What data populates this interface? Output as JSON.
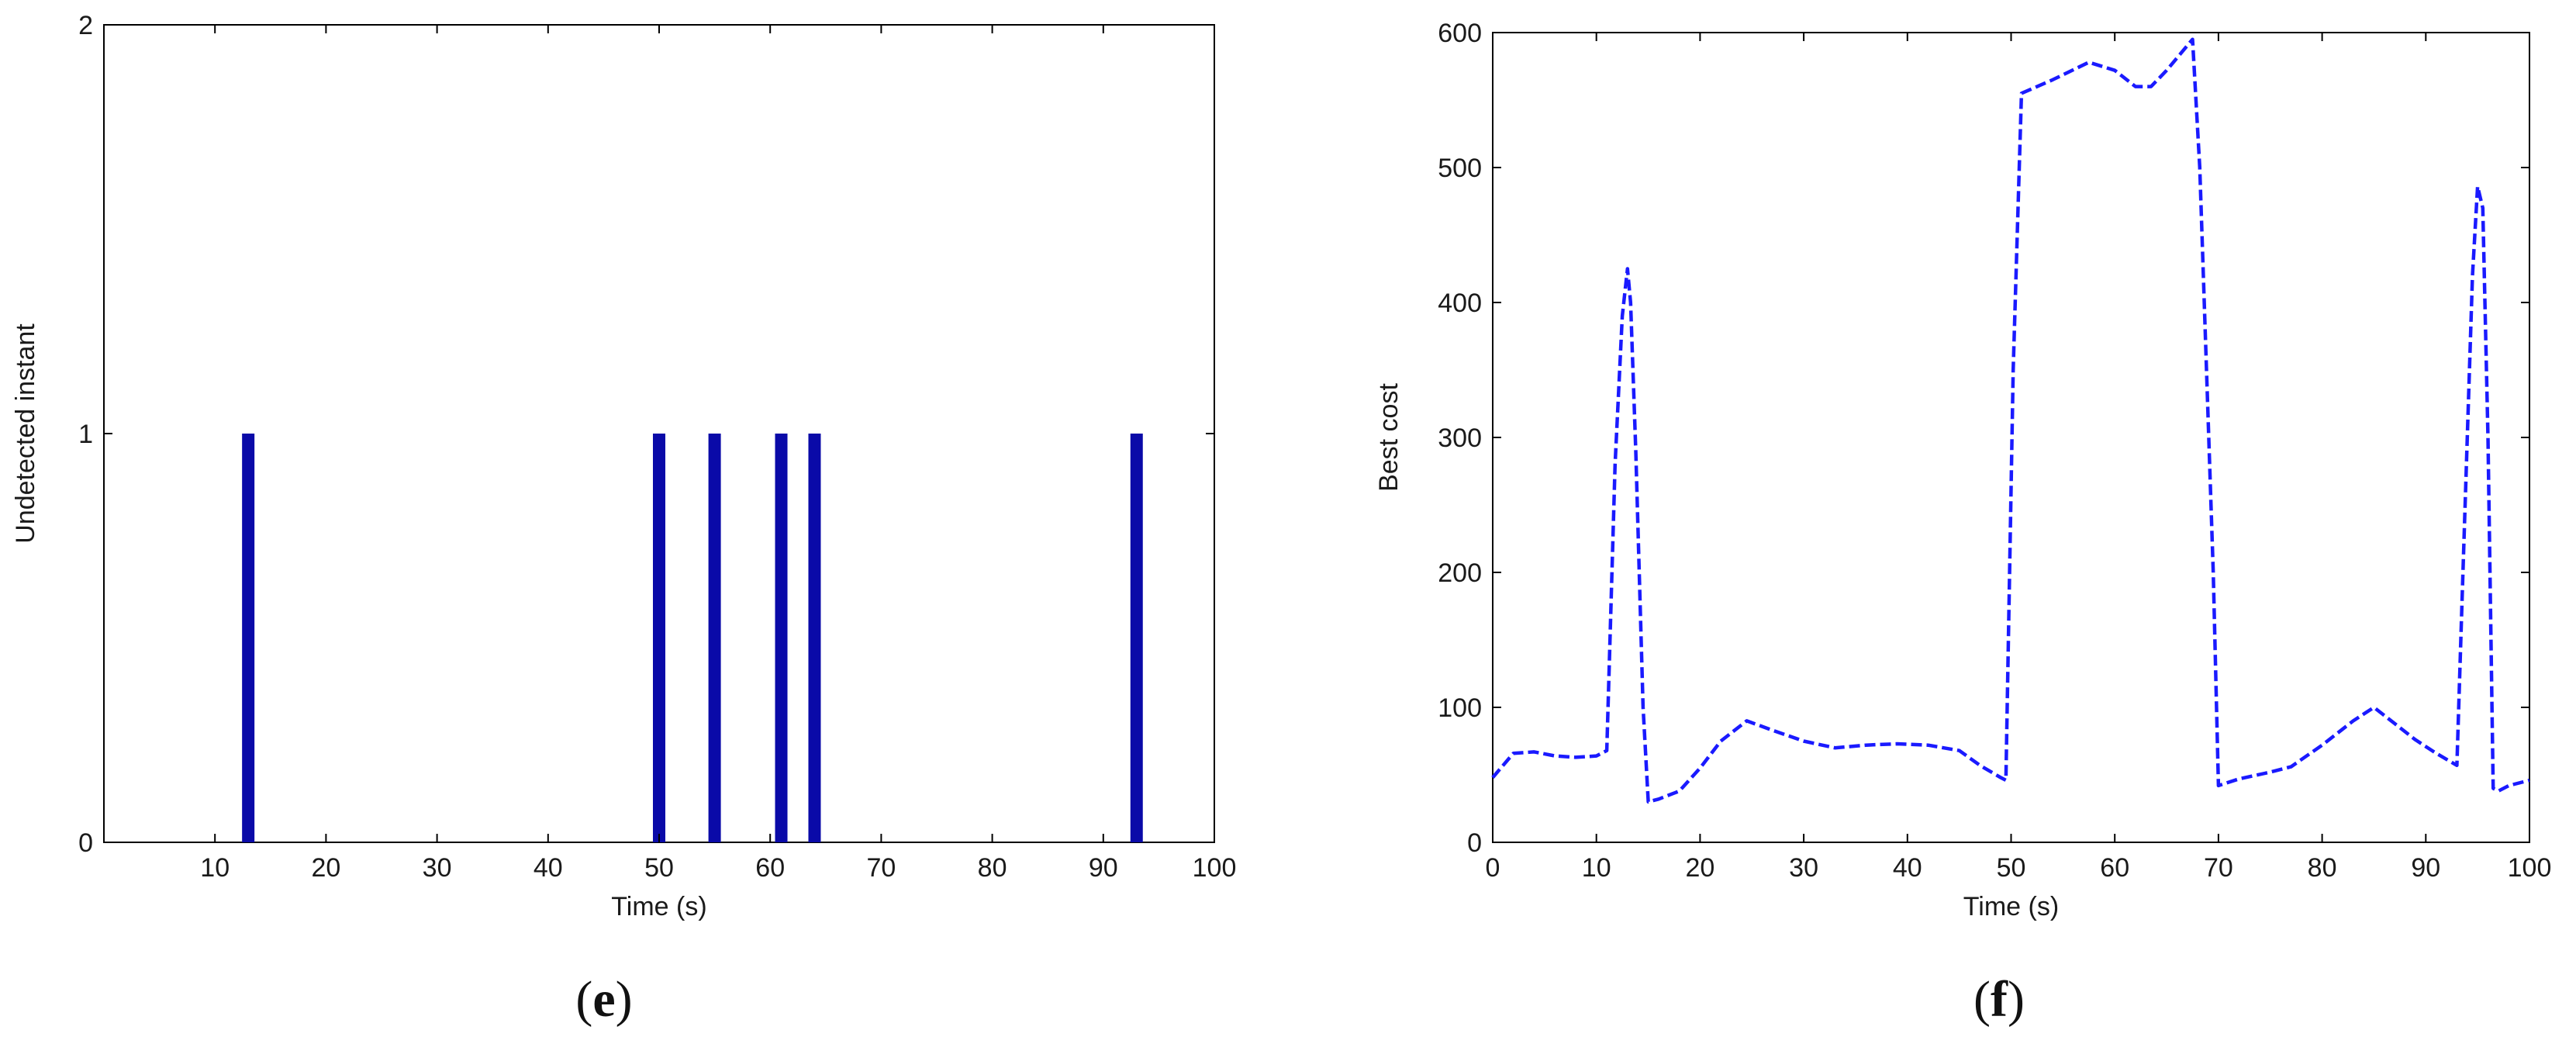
{
  "chart_data": [
    {
      "type": "bar",
      "caption_open": "(",
      "caption_letter": "e",
      "caption_close": ")",
      "xlabel": "Time (s)",
      "ylabel": "Undetected instant",
      "xlim": [
        0,
        100
      ],
      "ylim": [
        0,
        2
      ],
      "xticks": [
        "10",
        "20",
        "30",
        "40",
        "50",
        "60",
        "70",
        "80",
        "90",
        "100"
      ],
      "yticks": [
        "0",
        "1",
        "2"
      ],
      "grid": false,
      "color": "#0a0aa8",
      "x": [
        13,
        50,
        55,
        61,
        64,
        93
      ],
      "values": [
        1,
        1,
        1,
        1,
        1,
        1
      ]
    },
    {
      "type": "line",
      "caption_open": "(",
      "caption_letter": "f",
      "caption_close": ")",
      "xlabel": "Time (s)",
      "ylabel": "Best cost",
      "xlim": [
        0,
        100
      ],
      "ylim": [
        0,
        600
      ],
      "xticks": [
        "0",
        "10",
        "20",
        "30",
        "40",
        "50",
        "60",
        "70",
        "80",
        "90",
        "100"
      ],
      "yticks": [
        "0",
        "100",
        "200",
        "300",
        "400",
        "500",
        "600"
      ],
      "grid": false,
      "line_style": "dashed",
      "color": "#1a1aff",
      "series": [
        {
          "x": [
            0,
            2,
            4,
            6,
            8,
            10,
            11,
            11.8,
            12.5,
            13,
            13.3,
            13.8,
            14.5,
            15,
            16,
            18,
            20,
            22,
            24.5,
            27,
            30,
            33,
            36,
            39,
            42,
            45,
            47,
            49,
            49.5,
            50.2,
            51,
            54,
            57.5,
            60,
            62,
            63.5,
            65,
            67.5,
            68.2,
            69.5,
            70,
            72,
            75,
            77,
            80,
            83,
            85,
            87,
            89,
            91,
            93,
            93.5,
            94.5,
            95,
            95.5,
            96,
            96.5,
            97,
            98,
            100
          ],
          "y": [
            48,
            66,
            67,
            64,
            63,
            64,
            68,
            280,
            390,
            425,
            400,
            290,
            100,
            30,
            32,
            38,
            55,
            75,
            90,
            83,
            75,
            70,
            72,
            73,
            72,
            68,
            57,
            48,
            46,
            350,
            555,
            565,
            578,
            572,
            560,
            560,
            572,
            595,
            500,
            200,
            42,
            47,
            52,
            56,
            72,
            90,
            100,
            88,
            76,
            66,
            57,
            180,
            420,
            486,
            470,
            300,
            40,
            38,
            42,
            46
          ]
        }
      ]
    }
  ]
}
